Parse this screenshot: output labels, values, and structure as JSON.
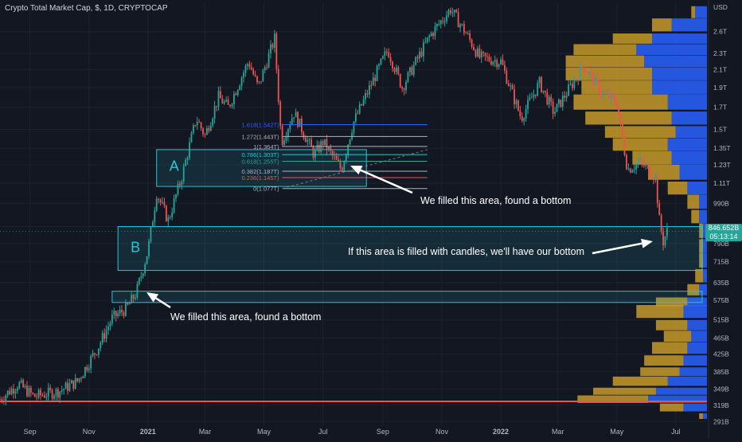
{
  "header": {
    "symbol_line": "Crypto Total Market Cap, $, 1D, CRYPTOCAP"
  },
  "price_tag": {
    "price": "846.652B",
    "countdown": "05:13:14"
  },
  "colors": {
    "background": "#131722",
    "bull": "#26a69a",
    "bear": "#ef5350",
    "zone_border": "#26c6da",
    "vp_up": "#2962ff",
    "vp_down": "#c79a2a",
    "support_line": "#ef5350",
    "axis_text": "#b2b5be"
  },
  "chart_data": {
    "type": "candlestick",
    "title": "Crypto Total Market Cap, $, 1D, CRYPTOCAP",
    "y_scale": "log",
    "y_unit": "USD",
    "x_ticks": [
      "Sep",
      "Nov",
      "2021",
      "Mar",
      "May",
      "Jul",
      "Sep",
      "Nov",
      "2022",
      "Mar",
      "May",
      "Jul"
    ],
    "y_ticks": [
      "2.6T",
      "2.3T",
      "2.1T",
      "1.9T",
      "1.7T",
      "1.5T",
      "1.35T",
      "1.23T",
      "1.11T",
      "990B",
      "870B",
      "790B",
      "715B",
      "635B",
      "575B",
      "515B",
      "465B",
      "425B",
      "385B",
      "349B",
      "319B",
      "291B"
    ],
    "y_tick_values_billion": [
      2600,
      2300,
      2100,
      1900,
      1700,
      1500,
      1350,
      1230,
      1110,
      990,
      870,
      790,
      715,
      635,
      575,
      515,
      465,
      425,
      385,
      349,
      319,
      291
    ],
    "ylim_billion": [
      285,
      3050
    ],
    "xlim": [
      "2020-08-01",
      "2022-07-25"
    ],
    "price_path": [
      {
        "date": "2020-08-01",
        "value_billion": 330
      },
      {
        "date": "2020-08-20",
        "value_billion": 360
      },
      {
        "date": "2020-09-05",
        "value_billion": 335
      },
      {
        "date": "2020-10-01",
        "value_billion": 345
      },
      {
        "date": "2020-10-20",
        "value_billion": 365
      },
      {
        "date": "2020-11-10",
        "value_billion": 440
      },
      {
        "date": "2020-11-25",
        "value_billion": 520
      },
      {
        "date": "2020-12-10",
        "value_billion": 550
      },
      {
        "date": "2020-12-20",
        "value_billion": 600
      },
      {
        "date": "2021-01-01",
        "value_billion": 760
      },
      {
        "date": "2021-01-10",
        "value_billion": 1050
      },
      {
        "date": "2021-01-22",
        "value_billion": 900
      },
      {
        "date": "2021-02-05",
        "value_billion": 1150
      },
      {
        "date": "2021-02-20",
        "value_billion": 1600
      },
      {
        "date": "2021-03-01",
        "value_billion": 1450
      },
      {
        "date": "2021-03-15",
        "value_billion": 1800
      },
      {
        "date": "2021-03-25",
        "value_billion": 1700
      },
      {
        "date": "2021-04-15",
        "value_billion": 2200
      },
      {
        "date": "2021-04-25",
        "value_billion": 1900
      },
      {
        "date": "2021-05-12",
        "value_billion": 2500
      },
      {
        "date": "2021-05-19",
        "value_billion": 1400
      },
      {
        "date": "2021-06-01",
        "value_billion": 1650
      },
      {
        "date": "2021-06-22",
        "value_billion": 1300
      },
      {
        "date": "2021-07-01",
        "value_billion": 1400
      },
      {
        "date": "2021-07-20",
        "value_billion": 1200
      },
      {
        "date": "2021-08-01",
        "value_billion": 1550
      },
      {
        "date": "2021-08-25",
        "value_billion": 2050
      },
      {
        "date": "2021-09-06",
        "value_billion": 2350
      },
      {
        "date": "2021-09-21",
        "value_billion": 1900
      },
      {
        "date": "2021-10-20",
        "value_billion": 2550
      },
      {
        "date": "2021-11-10",
        "value_billion": 2950
      },
      {
        "date": "2021-11-25",
        "value_billion": 2600
      },
      {
        "date": "2021-12-10",
        "value_billion": 2250
      },
      {
        "date": "2022-01-01",
        "value_billion": 2200
      },
      {
        "date": "2022-01-22",
        "value_billion": 1600
      },
      {
        "date": "2022-02-10",
        "value_billion": 1950
      },
      {
        "date": "2022-02-25",
        "value_billion": 1650
      },
      {
        "date": "2022-03-28",
        "value_billion": 2150
      },
      {
        "date": "2022-04-15",
        "value_billion": 1850
      },
      {
        "date": "2022-05-01",
        "value_billion": 1750
      },
      {
        "date": "2022-05-12",
        "value_billion": 1200
      },
      {
        "date": "2022-05-25",
        "value_billion": 1250
      },
      {
        "date": "2022-06-10",
        "value_billion": 1150
      },
      {
        "date": "2022-06-14",
        "value_billion": 900
      },
      {
        "date": "2022-06-18",
        "value_billion": 800
      },
      {
        "date": "2022-06-22",
        "value_billion": 846.652
      }
    ],
    "fibonacci": {
      "levels": [
        {
          "label": "1.618(1.542T)",
          "value_billion": 1542,
          "color": "#2962ff"
        },
        {
          "label": "1.272(1.443T)",
          "value_billion": 1443,
          "color": "#b2b5be"
        },
        {
          "label": "1(1.364T)",
          "value_billion": 1364,
          "color": "#b2b5be"
        },
        {
          "label": "0.786(1.303T)",
          "value_billion": 1303,
          "color": "#26c6da"
        },
        {
          "label": "0.618(1.255T)",
          "value_billion": 1255,
          "color": "#26a69a"
        },
        {
          "label": "0.382(1.187T)",
          "value_billion": 1187,
          "color": "#b2b5be"
        },
        {
          "label": "0.236(1.145T)",
          "value_billion": 1145,
          "color": "#ef5350"
        },
        {
          "label": "0(1.077T)",
          "value_billion": 1077,
          "color": "#b2b5be"
        }
      ],
      "start": "2021-05-20",
      "end": "2021-08-08"
    },
    "zones": [
      {
        "name": "A",
        "from": "2021-01-10",
        "to": "2021-08-15",
        "top_billion": 1340,
        "bottom_billion": 1090
      },
      {
        "name": "B",
        "from": "2020-12-01",
        "to": "2022-07-25",
        "top_billion": 870,
        "bottom_billion": 680
      },
      {
        "name": "",
        "from": "2020-11-25",
        "to": "2022-07-25",
        "top_billion": 605,
        "bottom_billion": 568
      }
    ],
    "support_line_billion": 326,
    "annotations": [
      {
        "text": "We filled this area, found a bottom",
        "zone": "A"
      },
      {
        "text": "If this area is filled with candles, we'll have our bottom",
        "zone": "B"
      },
      {
        "text": "We filled this area, found a bottom",
        "zone": "C"
      }
    ],
    "volume_profile": {
      "description": "Visible range volume profile on right side",
      "rows": [
        {
          "price_billion": 2900,
          "up": 0.03,
          "down": 0.01
        },
        {
          "price_billion": 2700,
          "up": 0.09,
          "down": 0.05
        },
        {
          "price_billion": 2500,
          "up": 0.14,
          "down": 0.1
        },
        {
          "price_billion": 2350,
          "up": 0.18,
          "down": 0.16
        },
        {
          "price_billion": 2200,
          "up": 0.16,
          "down": 0.2
        },
        {
          "price_billion": 2050,
          "up": 0.14,
          "down": 0.22
        },
        {
          "price_billion": 1900,
          "up": 0.14,
          "down": 0.18
        },
        {
          "price_billion": 1750,
          "up": 0.1,
          "down": 0.24
        },
        {
          "price_billion": 1600,
          "up": 0.09,
          "down": 0.22
        },
        {
          "price_billion": 1480,
          "up": 0.08,
          "down": 0.18
        },
        {
          "price_billion": 1380,
          "up": 0.1,
          "down": 0.14
        },
        {
          "price_billion": 1280,
          "up": 0.09,
          "down": 0.1
        },
        {
          "price_billion": 1180,
          "up": 0.07,
          "down": 0.08
        },
        {
          "price_billion": 1080,
          "up": 0.05,
          "down": 0.05
        },
        {
          "price_billion": 1000,
          "up": 0.02,
          "down": 0.03
        },
        {
          "price_billion": 920,
          "up": 0.02,
          "down": 0.02
        },
        {
          "price_billion": 850,
          "up": 0.01,
          "down": 0.01
        },
        {
          "price_billion": 780,
          "up": 0.01,
          "down": 0.01
        },
        {
          "price_billion": 720,
          "up": 0.01,
          "down": 0.01
        },
        {
          "price_billion": 660,
          "up": 0.01,
          "down": 0.02
        },
        {
          "price_billion": 610,
          "up": 0.02,
          "down": 0.03
        },
        {
          "price_billion": 570,
          "up": 0.05,
          "down": 0.08
        },
        {
          "price_billion": 540,
          "up": 0.06,
          "down": 0.12
        },
        {
          "price_billion": 500,
          "up": 0.05,
          "down": 0.08
        },
        {
          "price_billion": 470,
          "up": 0.04,
          "down": 0.07
        },
        {
          "price_billion": 440,
          "up": 0.05,
          "down": 0.09
        },
        {
          "price_billion": 410,
          "up": 0.06,
          "down": 0.1
        },
        {
          "price_billion": 385,
          "up": 0.07,
          "down": 0.1
        },
        {
          "price_billion": 365,
          "up": 0.1,
          "down": 0.14
        },
        {
          "price_billion": 345,
          "up": 0.13,
          "down": 0.16
        },
        {
          "price_billion": 330,
          "up": 0.15,
          "down": 0.18
        },
        {
          "price_billion": 315,
          "up": 0.06,
          "down": 0.06
        },
        {
          "price_billion": 300,
          "up": 0.01,
          "down": 0.01
        }
      ]
    }
  }
}
